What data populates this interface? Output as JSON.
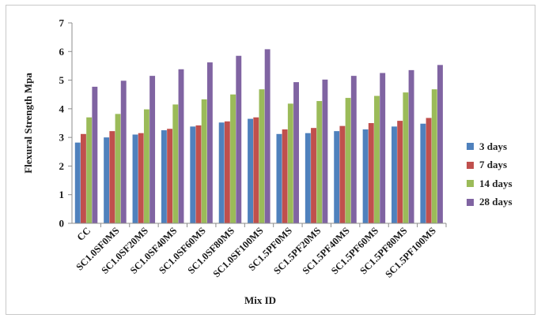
{
  "chart_data": {
    "type": "bar",
    "title": "",
    "xlabel": "Mix ID",
    "ylabel": "Flexural Strength Mpa",
    "ylim": [
      0,
      7
    ],
    "yticks": [
      "0",
      "1",
      "2",
      "3",
      "4",
      "5",
      "6",
      "7"
    ],
    "grid": false,
    "legend_position": "right",
    "categories": [
      "CC",
      "SC1.0SF0MS",
      "SC1.0SF20MS",
      "SC1.0SF40MS",
      "SC1.0SF60MS",
      "SC1.0SF80MS",
      "SC1.0SF100MS",
      "SC1.5PF0MS",
      "SC1.5PF20MS",
      "SC1.5PF40MS",
      "SC1.5PF60MS",
      "SC1.5PF80MS",
      "SC1.5PF100MS"
    ],
    "series": [
      {
        "name": "3 days",
        "color": "#4f81bd",
        "values": [
          2.82,
          3.0,
          3.1,
          3.25,
          3.38,
          3.52,
          3.65,
          3.12,
          3.15,
          3.22,
          3.28,
          3.38,
          3.48
        ]
      },
      {
        "name": "7 days",
        "color": "#c0504d",
        "values": [
          3.12,
          3.22,
          3.15,
          3.3,
          3.42,
          3.56,
          3.7,
          3.28,
          3.33,
          3.4,
          3.5,
          3.58,
          3.68
        ]
      },
      {
        "name": "14 days",
        "color": "#9bbb59",
        "values": [
          3.7,
          3.82,
          3.98,
          4.15,
          4.33,
          4.5,
          4.68,
          4.18,
          4.27,
          4.38,
          4.45,
          4.57,
          4.68
        ]
      },
      {
        "name": "28 days",
        "color": "#8064a2",
        "values": [
          4.77,
          4.98,
          5.15,
          5.38,
          5.62,
          5.85,
          6.08,
          4.93,
          5.02,
          5.15,
          5.25,
          5.35,
          5.53
        ]
      }
    ]
  }
}
